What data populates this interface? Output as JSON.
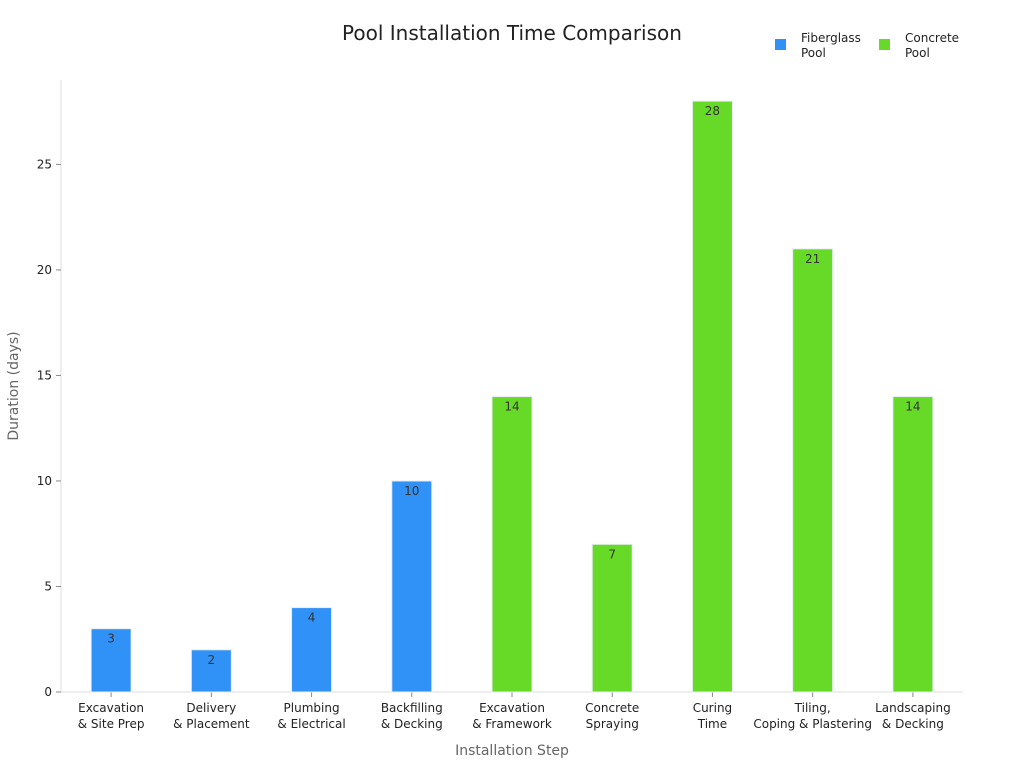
{
  "chart_data": {
    "type": "bar",
    "title": "Pool Installation Time Comparison",
    "xlabel": "Installation Step",
    "ylabel": "Duration (days)",
    "ylim": [
      0,
      29
    ],
    "yticks": [
      0,
      5,
      10,
      15,
      20,
      25
    ],
    "grid": false,
    "legend_position": "top-right",
    "categories": [
      [
        "Excavation",
        "& Site Prep"
      ],
      [
        "Delivery",
        "& Placement"
      ],
      [
        "Plumbing",
        "& Electrical"
      ],
      [
        "Backfilling",
        "& Decking"
      ],
      [
        "Excavation",
        "& Framework"
      ],
      [
        "Concrete",
        "Spraying"
      ],
      [
        "Curing",
        "Time"
      ],
      [
        "Tiling,",
        "Coping & Plastering"
      ],
      [
        "Landscaping",
        "& Decking"
      ]
    ],
    "series": [
      {
        "name": [
          "Fiberglass",
          "Pool"
        ],
        "color": "#3091f6",
        "values": [
          3,
          2,
          4,
          10,
          null,
          null,
          null,
          null,
          null
        ]
      },
      {
        "name": [
          "Concrete",
          "Pool"
        ],
        "color": "#67da28",
        "values": [
          null,
          null,
          null,
          null,
          14,
          7,
          28,
          21,
          14
        ]
      }
    ]
  }
}
